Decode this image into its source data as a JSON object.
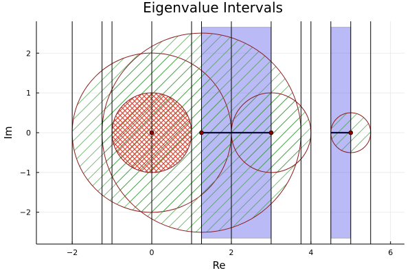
{
  "chart_data": {
    "type": "scatter",
    "title": "Eigenvalue Intervals",
    "xlabel": "Re",
    "ylabel": "Im",
    "xlim": [
      -2.9,
      6.35
    ],
    "ylim": [
      -2.8,
      2.8
    ],
    "x_ticks": [
      -2,
      0,
      2,
      4,
      6
    ],
    "y_ticks": [
      -2,
      -1,
      0,
      1,
      2
    ],
    "x_tick_labels": [
      "−2",
      "0",
      "2",
      "4",
      "6"
    ],
    "y_tick_labels": [
      "−2",
      "−1",
      "0",
      "1",
      "2"
    ],
    "grid": true,
    "legend": "none",
    "vertical_lines": [
      -2,
      -1.25,
      -1,
      0,
      1,
      1.25,
      2,
      3,
      3.75,
      4,
      4.5,
      5,
      5.5
    ],
    "intervals": [
      {
        "x0": 1.25,
        "x1": 3,
        "y0": -2.65,
        "y1": 2.65
      },
      {
        "x0": 4.5,
        "x1": 5,
        "y0": -2.65,
        "y1": 2.65
      }
    ],
    "interval_color": "#4a4ae8",
    "discs": [
      {
        "cx": 0,
        "cy": 0,
        "r": 2,
        "hatch": "green"
      },
      {
        "cx": 1.25,
        "cy": 0,
        "r": 2.5,
        "hatch": "green"
      },
      {
        "cx": 3,
        "cy": 0,
        "r": 1,
        "hatch": "green"
      },
      {
        "cx": 5,
        "cy": 0,
        "r": 0.5,
        "hatch": "green"
      },
      {
        "cx": 0,
        "cy": 0,
        "r": 1,
        "hatch": "red"
      }
    ],
    "disc_outline_color": "#8b1a1a",
    "hatch_green_color": "#3c9b3c",
    "hatch_red_color": "#d84a3a",
    "segments": [
      {
        "x0": 1.25,
        "x1": 3,
        "y": 0
      },
      {
        "x0": 4.5,
        "x1": 5,
        "y": 0
      }
    ],
    "segment_color": "#0b0b3b",
    "points": [
      {
        "x": 0,
        "y": 0
      },
      {
        "x": 1.25,
        "y": 0
      },
      {
        "x": 3,
        "y": 0
      },
      {
        "x": 5,
        "y": 0
      }
    ],
    "point_color": "#8b0000"
  }
}
